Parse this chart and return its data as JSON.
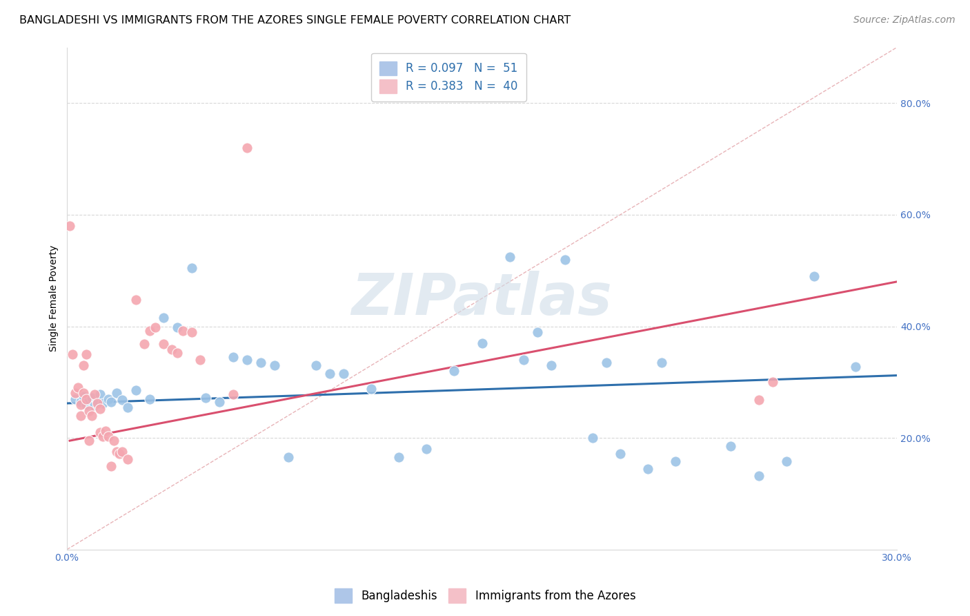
{
  "title": "BANGLADESHI VS IMMIGRANTS FROM THE AZORES SINGLE FEMALE POVERTY CORRELATION CHART",
  "source": "Source: ZipAtlas.com",
  "ylabel": "Single Female Poverty",
  "xlim": [
    0.0,
    0.3
  ],
  "ylim": [
    0.0,
    0.9
  ],
  "x_ticks": [
    0.0,
    0.3
  ],
  "x_tick_labels": [
    "0.0%",
    "30.0%"
  ],
  "y_ticks": [
    0.2,
    0.4,
    0.6,
    0.8
  ],
  "y_tick_labels": [
    "20.0%",
    "40.0%",
    "60.0%",
    "80.0%"
  ],
  "watermark": "ZIPatlas",
  "legend_r1": "R = 0.097   N =  51",
  "legend_r2": "R = 0.383   N =  40",
  "blue_scatter_x": [
    0.003,
    0.005,
    0.006,
    0.007,
    0.008,
    0.009,
    0.01,
    0.011,
    0.012,
    0.013,
    0.015,
    0.016,
    0.018,
    0.02,
    0.022,
    0.025,
    0.03,
    0.035,
    0.04,
    0.045,
    0.05,
    0.055,
    0.06,
    0.065,
    0.07,
    0.075,
    0.08,
    0.09,
    0.095,
    0.1,
    0.11,
    0.12,
    0.13,
    0.14,
    0.15,
    0.16,
    0.165,
    0.17,
    0.175,
    0.18,
    0.19,
    0.195,
    0.2,
    0.21,
    0.215,
    0.22,
    0.24,
    0.25,
    0.26,
    0.27,
    0.285
  ],
  "blue_scatter_y": [
    0.27,
    0.265,
    0.275,
    0.26,
    0.268,
    0.272,
    0.258,
    0.265,
    0.278,
    0.262,
    0.27,
    0.265,
    0.28,
    0.268,
    0.255,
    0.285,
    0.27,
    0.415,
    0.398,
    0.505,
    0.272,
    0.265,
    0.345,
    0.34,
    0.335,
    0.33,
    0.165,
    0.33,
    0.315,
    0.315,
    0.288,
    0.165,
    0.18,
    0.32,
    0.37,
    0.525,
    0.34,
    0.39,
    0.33,
    0.52,
    0.2,
    0.335,
    0.172,
    0.145,
    0.335,
    0.158,
    0.185,
    0.132,
    0.158,
    0.49,
    0.328
  ],
  "pink_scatter_x": [
    0.001,
    0.002,
    0.003,
    0.004,
    0.005,
    0.005,
    0.006,
    0.006,
    0.007,
    0.007,
    0.008,
    0.008,
    0.009,
    0.01,
    0.011,
    0.012,
    0.012,
    0.013,
    0.014,
    0.015,
    0.016,
    0.017,
    0.018,
    0.019,
    0.02,
    0.022,
    0.025,
    0.028,
    0.03,
    0.032,
    0.035,
    0.038,
    0.04,
    0.042,
    0.045,
    0.048,
    0.06,
    0.065,
    0.25,
    0.255
  ],
  "pink_scatter_y": [
    0.58,
    0.35,
    0.28,
    0.29,
    0.26,
    0.24,
    0.33,
    0.28,
    0.35,
    0.27,
    0.248,
    0.195,
    0.24,
    0.278,
    0.262,
    0.252,
    0.21,
    0.202,
    0.212,
    0.202,
    0.15,
    0.195,
    0.175,
    0.172,
    0.175,
    0.162,
    0.448,
    0.368,
    0.392,
    0.398,
    0.368,
    0.358,
    0.352,
    0.392,
    0.39,
    0.34,
    0.278,
    0.72,
    0.268,
    0.3
  ],
  "blue_line_x": [
    0.0,
    0.3
  ],
  "blue_line_y": [
    0.262,
    0.312
  ],
  "pink_line_x": [
    0.001,
    0.3
  ],
  "pink_line_y": [
    0.195,
    0.48
  ],
  "diag_line_x": [
    0.0,
    0.3
  ],
  "diag_line_y": [
    0.0,
    0.9
  ],
  "blue_color": "#9dc3e6",
  "pink_color": "#f4a6b0",
  "blue_line_color": "#2e6fac",
  "pink_line_color": "#d94f6e",
  "diag_line_color": "#e8b4b8",
  "scatter_size": 120,
  "title_fontsize": 11.5,
  "axis_label_fontsize": 10,
  "tick_fontsize": 10,
  "legend_fontsize": 12,
  "source_fontsize": 10,
  "background_color": "#ffffff",
  "grid_color": "#d8d8d8"
}
